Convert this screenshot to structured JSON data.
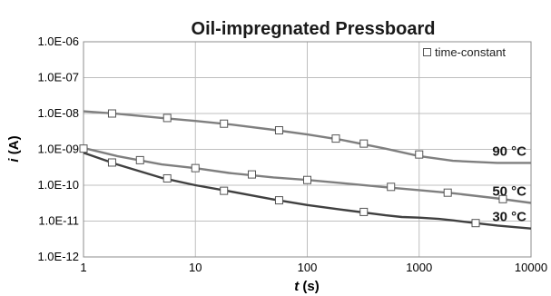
{
  "chart_data": {
    "type": "line",
    "title": "Oil-impregnated Pressboard",
    "xlabel_prefix": "t",
    "xlabel_suffix": " (s)",
    "ylabel_prefix": "i",
    "ylabel_suffix": " (A)",
    "x_scale": "log",
    "y_scale": "log",
    "xlim": [
      1,
      10000
    ],
    "ylim": [
      1e-12,
      1e-06
    ],
    "x_ticks": [
      "1",
      "10",
      "100",
      "1000",
      "10000"
    ],
    "y_ticks": [
      "1.0E-12",
      "1.0E-11",
      "1.0E-10",
      "1.0E-09",
      "1.0E-08",
      "1.0E-07",
      "1.0E-06"
    ],
    "grid": true,
    "legend": {
      "position": "top-right",
      "label": "time-constant"
    },
    "series": [
      {
        "name": "90 °C",
        "color": "#7f7f7f",
        "x": [
          1,
          2,
          5,
          10,
          20,
          50,
          100,
          200,
          500,
          1000,
          2000,
          5000,
          10000
        ],
        "y": [
          1.15e-08,
          9.8e-09,
          7.5e-09,
          6.2e-09,
          5e-09,
          3.5e-09,
          2.6e-09,
          1.85e-09,
          1.05e-09,
          6.5e-10,
          4.8e-10,
          4.2e-10,
          4.2e-10
        ],
        "markers_x": [
          1.8,
          5.6,
          18,
          56,
          180,
          320,
          1000
        ],
        "markers_y": [
          1e-08,
          7.5e-09,
          5.2e-09,
          3.4e-09,
          2e-09,
          1.45e-09,
          7.2e-10
        ]
      },
      {
        "name": "50 °C",
        "color": "#7f7f7f",
        "x": [
          1,
          2,
          5,
          10,
          20,
          50,
          100,
          200,
          500,
          1000,
          2000,
          5000,
          10000
        ],
        "y": [
          1.1e-09,
          6.5e-10,
          3.8e-10,
          3e-10,
          2.2e-10,
          1.65e-10,
          1.4e-10,
          1.15e-10,
          8.8e-11,
          7.3e-11,
          6e-11,
          4.3e-11,
          3.2e-11
        ],
        "markers_x": [
          1,
          3.2,
          10,
          32,
          100,
          560,
          1800,
          5600
        ],
        "markers_y": [
          1.05e-09,
          5e-10,
          3e-10,
          2e-10,
          1.4e-10,
          9e-11,
          6.2e-11,
          4.1e-11
        ]
      },
      {
        "name": "30 °C",
        "color": "#404040",
        "x": [
          1,
          2,
          5,
          10,
          20,
          50,
          100,
          200,
          500,
          700,
          1000,
          1500,
          2000,
          3000,
          5000,
          10000
        ],
        "y": [
          8e-10,
          3.8e-10,
          1.6e-10,
          1e-10,
          6.8e-11,
          4e-11,
          2.8e-11,
          2.1e-11,
          1.45e-11,
          1.3e-11,
          1.25e-11,
          1.15e-11,
          1.05e-11,
          9e-12,
          7.5e-12,
          6.2e-12
        ],
        "markers_x": [
          1.8,
          5.6,
          18,
          56,
          320,
          3200
        ],
        "markers_y": [
          4.3e-10,
          1.55e-10,
          7e-11,
          3.8e-11,
          1.8e-11,
          8.8e-12
        ]
      }
    ]
  }
}
